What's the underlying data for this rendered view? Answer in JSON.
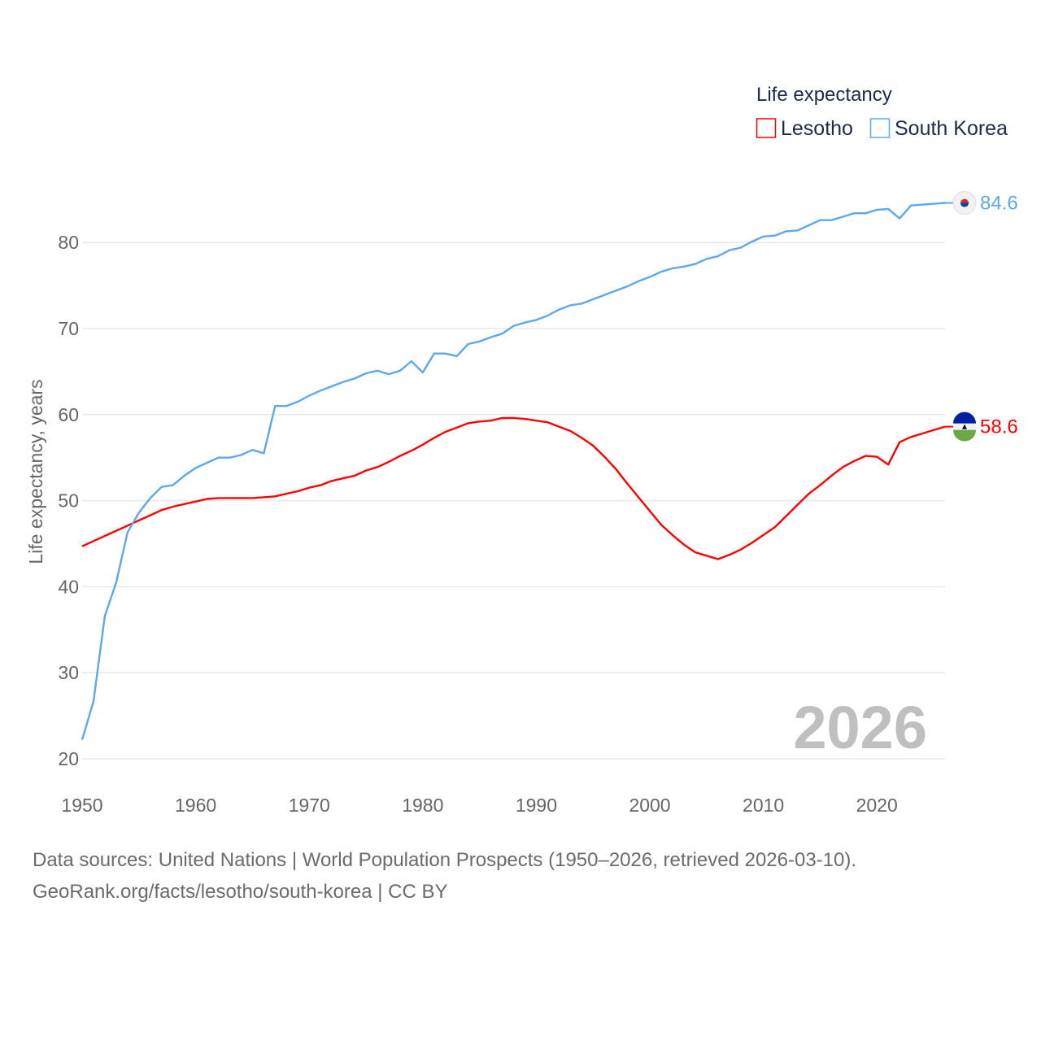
{
  "chart_data": {
    "type": "line",
    "ylabel": "Life expectancy, years",
    "xlabel": "",
    "xlim": [
      1950,
      2026
    ],
    "ylim": [
      20,
      87
    ],
    "yticks": [
      20,
      30,
      40,
      50,
      60,
      70,
      80
    ],
    "xticks": [
      1950,
      1960,
      1970,
      1980,
      1990,
      2000,
      2010,
      2020
    ],
    "grid": true,
    "legend_title": "Life expectancy",
    "legend_position": "top-right",
    "year_watermark": "2026",
    "x": [
      1950,
      1951,
      1952,
      1953,
      1954,
      1955,
      1956,
      1957,
      1958,
      1959,
      1960,
      1961,
      1962,
      1963,
      1964,
      1965,
      1966,
      1967,
      1968,
      1969,
      1970,
      1971,
      1972,
      1973,
      1974,
      1975,
      1976,
      1977,
      1978,
      1979,
      1980,
      1981,
      1982,
      1983,
      1984,
      1985,
      1986,
      1987,
      1988,
      1989,
      1990,
      1991,
      1992,
      1993,
      1994,
      1995,
      1996,
      1997,
      1998,
      1999,
      2000,
      2001,
      2002,
      2003,
      2004,
      2005,
      2006,
      2007,
      2008,
      2009,
      2010,
      2011,
      2012,
      2013,
      2014,
      2015,
      2016,
      2017,
      2018,
      2019,
      2020,
      2021,
      2022,
      2023,
      2024,
      2025,
      2026
    ],
    "series": [
      {
        "name": "Lesotho",
        "color": "#ff0000",
        "end_label": "58.6",
        "values": [
          44.7,
          45.3,
          45.9,
          46.5,
          47.1,
          47.7,
          48.3,
          48.9,
          49.3,
          49.6,
          49.9,
          50.2,
          50.3,
          50.3,
          50.3,
          50.3,
          50.4,
          50.5,
          50.8,
          51.1,
          51.5,
          51.8,
          52.3,
          52.6,
          52.9,
          53.5,
          53.9,
          54.5,
          55.2,
          55.8,
          56.5,
          57.3,
          58.0,
          58.5,
          59.0,
          59.2,
          59.3,
          59.6,
          59.6,
          59.5,
          59.3,
          59.1,
          58.6,
          58.1,
          57.3,
          56.4,
          55.1,
          53.7,
          52.0,
          50.4,
          48.8,
          47.2,
          46.0,
          44.9,
          44.0,
          43.6,
          43.2,
          43.7,
          44.3,
          45.1,
          46.0,
          46.9,
          48.2,
          49.5,
          50.8,
          51.8,
          52.9,
          53.9,
          54.6,
          55.2,
          55.1,
          54.2,
          56.8,
          57.4,
          57.8,
          58.2,
          58.6
        ]
      },
      {
        "name": "South Korea",
        "color": "#5ea8ea",
        "end_label": "84.6",
        "values": [
          22.2,
          26.7,
          36.6,
          40.5,
          46.3,
          48.6,
          50.3,
          51.6,
          51.8,
          52.9,
          53.8,
          54.4,
          55.0,
          55.0,
          55.3,
          55.9,
          55.5,
          61.0,
          61.0,
          61.5,
          62.2,
          62.8,
          63.3,
          63.8,
          64.2,
          64.8,
          65.1,
          64.7,
          65.1,
          66.2,
          64.9,
          67.1,
          67.1,
          66.8,
          68.2,
          68.5,
          69.0,
          69.4,
          70.3,
          70.7,
          71.0,
          71.5,
          72.2,
          72.7,
          72.9,
          73.4,
          73.9,
          74.4,
          74.9,
          75.5,
          76.0,
          76.6,
          77.0,
          77.2,
          77.5,
          78.1,
          78.4,
          79.1,
          79.4,
          80.1,
          80.7,
          80.8,
          81.3,
          81.4,
          82.0,
          82.6,
          82.6,
          83.0,
          83.4,
          83.4,
          83.8,
          83.9,
          82.8,
          84.3,
          84.4,
          84.5,
          84.6
        ]
      }
    ]
  },
  "footer": {
    "line1": "Data sources: United Nations | World Population Prospects (1950–2026, retrieved 2026-03-10).",
    "line2": "GeoRank.org/facts/lesotho/south-korea | CC BY"
  }
}
